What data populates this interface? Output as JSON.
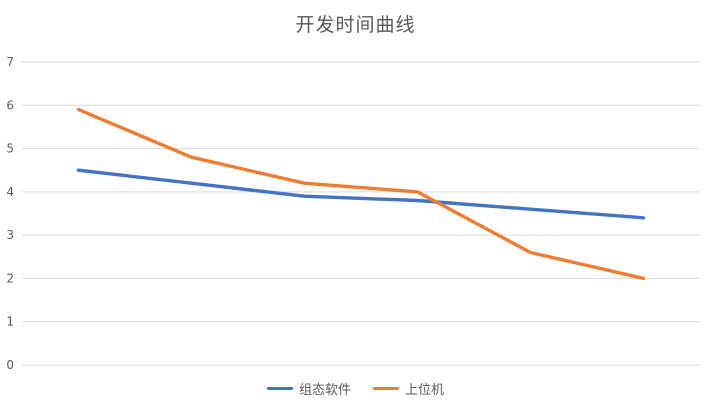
{
  "chart_data": {
    "type": "line",
    "title": "开发时间曲线",
    "xlabel": "",
    "ylabel": "",
    "x_axis_labels_visible": false,
    "ylim": [
      0,
      7
    ],
    "yticks": [
      0,
      1,
      2,
      3,
      4,
      5,
      6,
      7
    ],
    "grid": true,
    "legend_position": "bottom",
    "series": [
      {
        "name": "组态软件",
        "color": "#4472C4",
        "values": [
          4.5,
          4.2,
          3.9,
          3.8,
          3.6,
          3.4
        ]
      },
      {
        "name": "上位机",
        "color": "#ED7D31",
        "values": [
          5.9,
          4.8,
          4.2,
          4.0,
          2.6,
          2.0
        ]
      }
    ],
    "colors": {
      "grid": "#d9d9d9",
      "tick_label": "#595959",
      "title": "#595959"
    }
  }
}
